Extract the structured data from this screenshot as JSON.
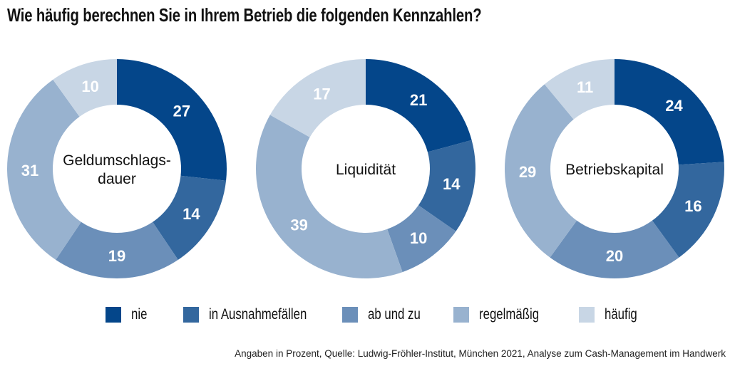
{
  "chart_data": {
    "type": "pie",
    "title": "Wie häufig berechnen Sie in Ihrem Betrieb die folgenden Kennzahlen?",
    "unit": "Prozent",
    "legend_position": "bottom",
    "categories": [
      "nie",
      "in Ausnahmefällen",
      "ab und zu",
      "regelmäßig",
      "häufig"
    ],
    "colors": [
      "#04468a",
      "#33679e",
      "#6b8fb9",
      "#98b2cf",
      "#c8d6e5"
    ],
    "charts": [
      {
        "name": "Geldumschlagsdauer",
        "label_lines": [
          "Geldumschlags-",
          "dauer"
        ],
        "values": [
          27,
          14,
          19,
          31,
          10
        ]
      },
      {
        "name": "Liquidität",
        "label_lines": [
          "Liquidität"
        ],
        "values": [
          21,
          14,
          10,
          39,
          17
        ]
      },
      {
        "name": "Betriebskapital",
        "label_lines": [
          "Betriebskapital"
        ],
        "values": [
          24,
          16,
          20,
          29,
          11
        ]
      }
    ],
    "source": "Angaben in Prozent, Quelle: Ludwig-Fröhler-Institut, München 2021, Analyse zum Cash-Management im Handwerk"
  }
}
